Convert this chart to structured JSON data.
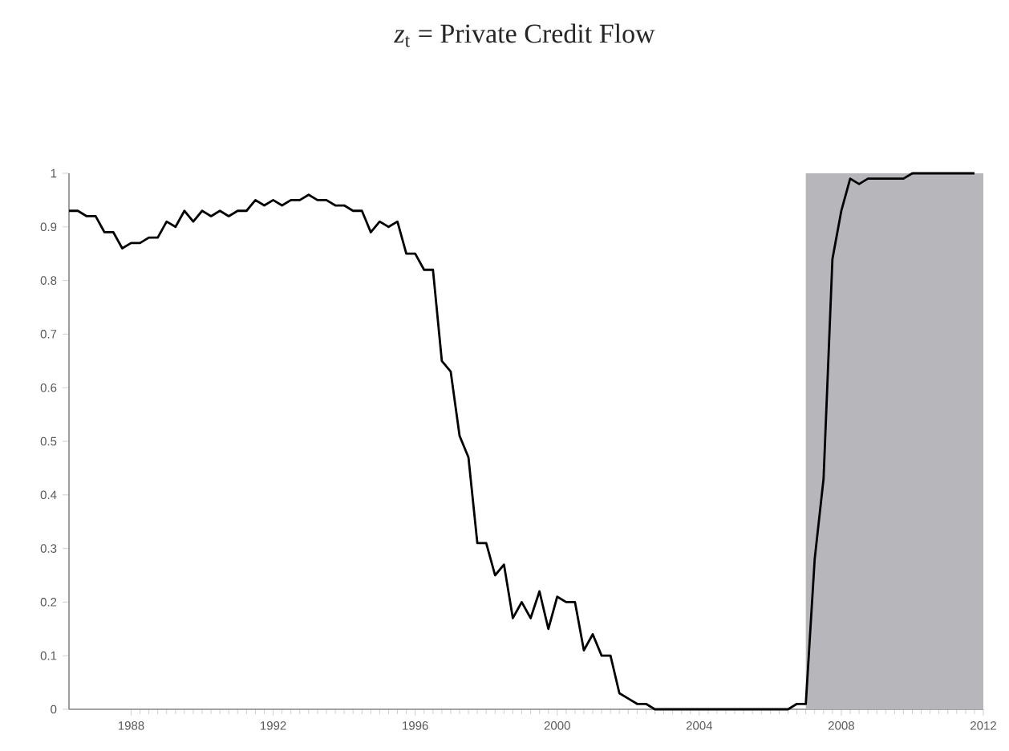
{
  "chart_data": {
    "type": "line",
    "title": "*z*$_{t}$ = Private Credit Flow",
    "xlim": [
      1986.25,
      2012
    ],
    "xticks": [
      1988,
      1992,
      1996,
      2000,
      2004,
      2008,
      2012
    ],
    "ylim": [
      0,
      1
    ],
    "yticks": [
      0,
      0.1,
      0.2,
      0.3,
      0.4,
      0.5,
      0.6,
      0.7,
      0.8,
      0.9,
      1
    ],
    "grid": false,
    "marker": "none",
    "line_style": "solid",
    "bands": [
      {
        "axis": "x",
        "from": 2007,
        "to": 2012,
        "color": "#b7b7bb"
      }
    ],
    "series": [
      {
        "color": "#000000",
        "x": [
          1986.25,
          1986.5,
          1986.75,
          1987,
          1987.25,
          1987.5,
          1987.75,
          1988,
          1988.25,
          1988.5,
          1988.75,
          1989,
          1989.25,
          1989.5,
          1989.75,
          1990,
          1990.25,
          1990.5,
          1990.75,
          1991,
          1991.25,
          1991.5,
          1991.75,
          1992,
          1992.25,
          1992.5,
          1992.75,
          1993,
          1993.25,
          1993.5,
          1993.75,
          1994,
          1994.25,
          1994.5,
          1994.75,
          1995,
          1995.25,
          1995.5,
          1995.75,
          1996,
          1996.25,
          1996.5,
          1996.75,
          1997,
          1997.25,
          1997.5,
          1997.75,
          1998,
          1998.25,
          1998.5,
          1998.75,
          1999,
          1999.25,
          1999.5,
          1999.75,
          2000,
          2000.25,
          2000.5,
          2000.75,
          2001,
          2001.25,
          2001.5,
          2001.75,
          2002,
          2002.25,
          2002.5,
          2002.75,
          2003,
          2003.25,
          2003.5,
          2003.75,
          2004,
          2004.25,
          2004.5,
          2004.75,
          2005,
          2005.25,
          2005.5,
          2005.75,
          2006,
          2006.25,
          2006.5,
          2006.75,
          2007,
          2007.25,
          2007.5,
          2007.75,
          2008,
          2008.25,
          2008.5,
          2008.75,
          2009,
          2009.25,
          2009.5,
          2009.75,
          2010,
          2010.25,
          2010.5,
          2010.75,
          2011,
          2011.25,
          2011.5,
          2011.75
        ],
        "values": [
          0.93,
          0.93,
          0.92,
          0.92,
          0.89,
          0.89,
          0.86,
          0.87,
          0.87,
          0.88,
          0.88,
          0.91,
          0.9,
          0.93,
          0.91,
          0.93,
          0.92,
          0.93,
          0.92,
          0.93,
          0.93,
          0.95,
          0.94,
          0.95,
          0.94,
          0.95,
          0.95,
          0.96,
          0.95,
          0.95,
          0.94,
          0.94,
          0.93,
          0.93,
          0.89,
          0.91,
          0.9,
          0.91,
          0.85,
          0.85,
          0.82,
          0.82,
          0.65,
          0.63,
          0.51,
          0.47,
          0.31,
          0.31,
          0.25,
          0.27,
          0.17,
          0.2,
          0.17,
          0.22,
          0.15,
          0.21,
          0.2,
          0.2,
          0.11,
          0.14,
          0.1,
          0.1,
          0.03,
          0.02,
          0.01,
          0.01,
          0,
          0,
          0,
          0,
          0,
          0,
          0,
          0,
          0,
          0,
          0,
          0,
          0,
          0,
          0,
          0,
          0.01,
          0.01,
          0.28,
          0.43,
          0.84,
          0.93,
          0.99,
          0.98,
          0.99,
          0.99,
          0.99,
          0.99,
          0.99,
          1,
          1,
          1,
          1,
          1,
          1,
          1,
          1
        ]
      }
    ]
  }
}
